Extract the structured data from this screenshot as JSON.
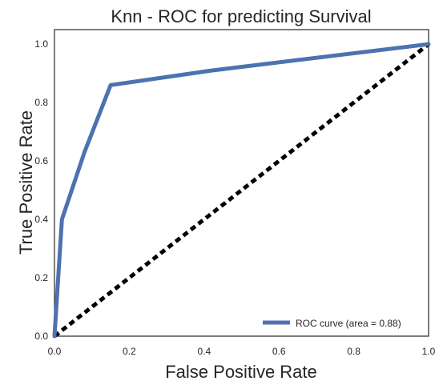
{
  "chart_data": {
    "type": "line",
    "title": "Knn - ROC for predicting Survival",
    "xlabel": "False Positive Rate",
    "ylabel": "True Positive Rate",
    "xlim": [
      0.0,
      1.0
    ],
    "ylim": [
      0.0,
      1.05
    ],
    "x_ticks": [
      "0.0",
      "0.2",
      "0.4",
      "0.6",
      "0.8",
      "1.0"
    ],
    "y_ticks": [
      "0.0",
      "0.2",
      "0.4",
      "0.6",
      "0.8",
      "1.0"
    ],
    "grid": false,
    "legend_position": "lower-right",
    "series": [
      {
        "name": "ROC curve (area = 0.88)",
        "color": "#4c72b0",
        "style": "solid",
        "x": [
          0.0,
          0.02,
          0.08,
          0.15,
          0.42,
          1.0
        ],
        "y": [
          0.0,
          0.4,
          0.63,
          0.86,
          0.91,
          1.0
        ]
      },
      {
        "color": "#000000",
        "style": "dashed",
        "x": [
          0.0,
          1.0
        ],
        "y": [
          0.0,
          1.0
        ]
      }
    ]
  }
}
